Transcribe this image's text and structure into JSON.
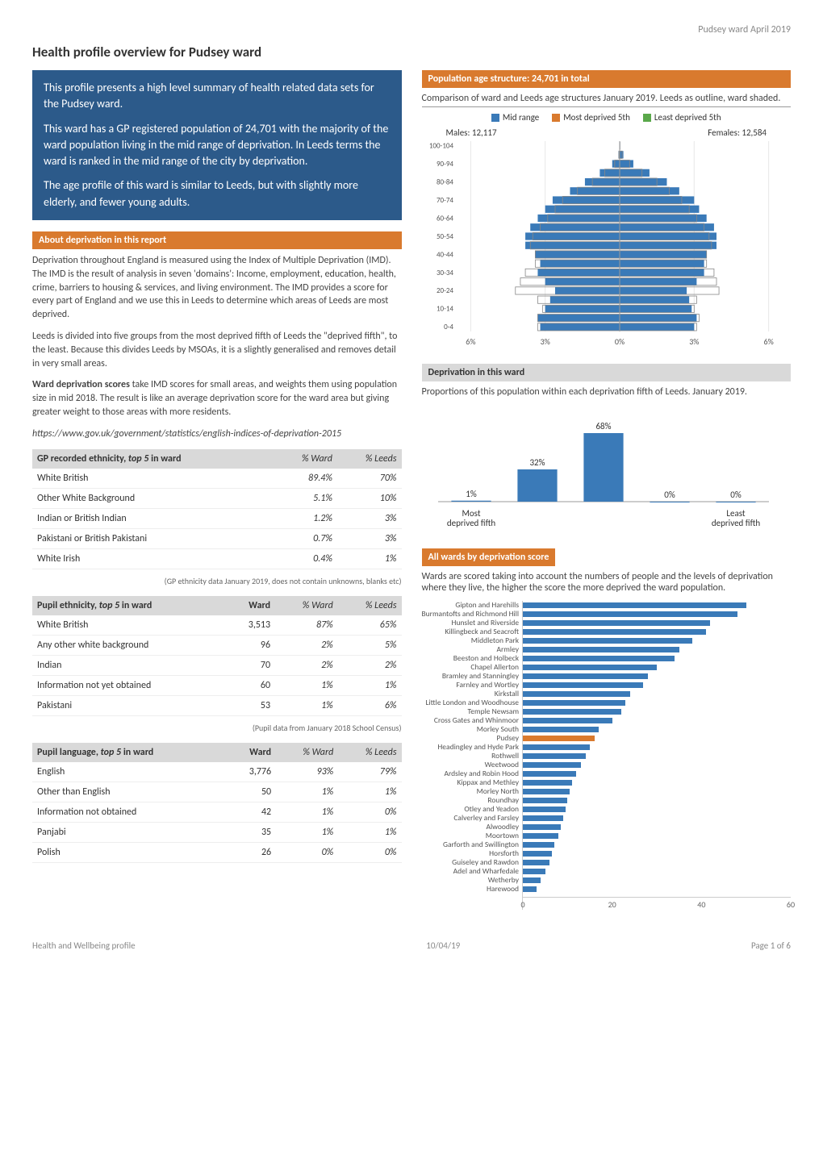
{
  "page_header_right": "Pudsey ward April 2019",
  "page_title": "Health profile overview for Pudsey ward",
  "summary": {
    "p1": "This profile presents a high level summary of health related data sets for the Pudsey ward.",
    "p2": "This ward has a GP registered population of 24,701 with the majority of the ward population living in the mid range of deprivation. In Leeds terms the ward is ranked in the mid range of the city by deprivation.",
    "p3": "The age profile of this ward is similar to Leeds, but with slightly more elderly, and fewer young adults."
  },
  "about_deprivation": {
    "header": "About deprivation in this report",
    "p1": "Deprivation throughout England is measured using the Index of Multiple Deprivation (IMD). The IMD is the result of analysis in seven 'domains': Income, employment, education, health, crime, barriers to housing & services, and living environment. The IMD provides a score for every part of England and we use this in Leeds to determine which areas of Leeds are most deprived.",
    "p2": "Leeds is divided into five groups from the most deprived fifth of Leeds the \"deprived fifth\", to the least. Because this divides Leeds by MSOAs, it is a slightly generalised and removes detail in very small areas.",
    "p3": "Ward deprivation scores take IMD scores for small areas, and weights them using population size in mid 2018. The result is like an average deprivation score for the ward area but giving greater weight to those areas with more residents.",
    "p3_bold_lead": "Ward deprivation scores",
    "link": "https://www.gov.uk/government/statistics/english-indices-of-deprivation-2015"
  },
  "ethnicity_gp": {
    "header": "GP recorded ethnicity, top 5 in ward",
    "header_italic": "top 5",
    "cols": [
      "% Ward",
      "% Leeds"
    ],
    "rows": [
      {
        "label": "White British",
        "ward": "89.4%",
        "leeds": "70%"
      },
      {
        "label": "Other White Background",
        "ward": "5.1%",
        "leeds": "10%"
      },
      {
        "label": "Indian or British Indian",
        "ward": "1.2%",
        "leeds": "3%"
      },
      {
        "label": "Pakistani or British Pakistani",
        "ward": "0.7%",
        "leeds": "3%"
      },
      {
        "label": "White Irish",
        "ward": "0.4%",
        "leeds": "1%"
      }
    ],
    "note": "(GP ethnicity data January 2019, does not contain unknowns, blanks etc)"
  },
  "ethnicity_pupil": {
    "header": "Pupil ethnicity, top 5 in ward",
    "cols": [
      "Ward",
      "% Ward",
      "% Leeds"
    ],
    "rows": [
      {
        "label": "White British",
        "n": "3,513",
        "ward": "87%",
        "leeds": "65%"
      },
      {
        "label": "Any other white background",
        "n": "96",
        "ward": "2%",
        "leeds": "5%"
      },
      {
        "label": "Indian",
        "n": "70",
        "ward": "2%",
        "leeds": "2%"
      },
      {
        "label": "Information not yet obtained",
        "n": "60",
        "ward": "1%",
        "leeds": "1%"
      },
      {
        "label": "Pakistani",
        "n": "53",
        "ward": "1%",
        "leeds": "6%"
      }
    ],
    "note": "(Pupil data from January 2018 School Census)"
  },
  "language_pupil": {
    "header": "Pupil language, top 5 in ward",
    "cols": [
      "Ward",
      "% Ward",
      "% Leeds"
    ],
    "rows": [
      {
        "label": "English",
        "n": "3,776",
        "ward": "93%",
        "leeds": "79%"
      },
      {
        "label": "Other than English",
        "n": "50",
        "ward": "1%",
        "leeds": "1%"
      },
      {
        "label": "Information not obtained",
        "n": "42",
        "ward": "1%",
        "leeds": "0%"
      },
      {
        "label": "Panjabi",
        "n": "35",
        "ward": "1%",
        "leeds": "1%"
      },
      {
        "label": "Polish",
        "n": "26",
        "ward": "0%",
        "leeds": "0%"
      }
    ]
  },
  "population_chart": {
    "header": "Population age structure: 24,701 in total",
    "subtitle": "Comparison of ward and Leeds age structures January 2019. Leeds as outline, ward shaded.",
    "legend": [
      {
        "label": "Mid range",
        "color": "#3a7ab8"
      },
      {
        "label": "Most deprived 5th",
        "color": "#d97a2e"
      },
      {
        "label": "Least deprived 5th",
        "color": "#5aa84a"
      }
    ],
    "males_label": "Males: 12,117",
    "females_label": "Females: 12,584",
    "age_bands": [
      "100-104",
      "90-94",
      "80-84",
      "70-74",
      "60-64",
      "50-54",
      "40-44",
      "30-34",
      "20-24",
      "10-14",
      "0-4"
    ],
    "age_bands_full": [
      "100-104",
      "95-99",
      "90-94",
      "85-89",
      "80-84",
      "75-79",
      "70-74",
      "65-69",
      "60-64",
      "55-59",
      "50-54",
      "45-49",
      "40-44",
      "35-39",
      "30-34",
      "25-29",
      "20-24",
      "15-19",
      "10-14",
      "5-9",
      "0-4"
    ],
    "x_ticks": [
      "6%",
      "3%",
      "0%",
      "3%",
      "6%"
    ],
    "xlim": 6.5,
    "ward_color": "#3a7ab8",
    "leeds_outline_color": "#888888",
    "background_color": "#ffffff",
    "grid_color": "#e8e8e8",
    "males_pct": [
      0.0,
      0.05,
      0.3,
      0.8,
      1.4,
      2.0,
      2.7,
      3.0,
      3.3,
      3.6,
      3.8,
      3.8,
      3.4,
      3.2,
      3.3,
      3.0,
      2.6,
      2.8,
      3.0,
      3.3,
      3.2
    ],
    "females_pct": [
      0.02,
      0.15,
      0.55,
      1.2,
      1.9,
      2.4,
      3.0,
      3.2,
      3.5,
      3.8,
      3.9,
      3.9,
      3.5,
      3.4,
      3.4,
      3.1,
      2.7,
      2.8,
      2.9,
      3.1,
      3.0
    ],
    "leeds_m": [
      0.0,
      0.03,
      0.2,
      0.6,
      1.1,
      1.7,
      2.3,
      2.6,
      2.9,
      3.2,
      3.5,
      3.6,
      3.4,
      3.4,
      3.8,
      4.0,
      4.2,
      3.3,
      3.1,
      3.3,
      3.3
    ],
    "leeds_f": [
      0.01,
      0.1,
      0.4,
      0.9,
      1.5,
      2.0,
      2.5,
      2.8,
      3.1,
      3.4,
      3.6,
      3.7,
      3.5,
      3.5,
      3.8,
      3.9,
      4.0,
      3.1,
      3.0,
      3.2,
      3.1
    ]
  },
  "deprivation_ward": {
    "header": "Deprivation in this ward",
    "subtitle": "Proportions of this population within each deprivation fifth of Leeds. January 2019.",
    "values": [
      1,
      32,
      68,
      0,
      0
    ],
    "labels": [
      "1%",
      "32%",
      "68%",
      "0%",
      "0%"
    ],
    "axis_left": "Most deprived fifth",
    "axis_right": "Least deprived fifth",
    "bar_color": "#3a7ab8",
    "ylim": 80
  },
  "all_wards": {
    "header": "All wards by deprivation score",
    "subtitle": "Wards are scored taking into account the numbers of people and the levels of deprivation where they live, the higher the score the more deprived the ward population.",
    "xlim": 60,
    "x_ticks": [
      0,
      20,
      40,
      60
    ],
    "default_color": "#3a7ab8",
    "highlight_color": "#d97a2e",
    "highlight_ward": "Pudsey",
    "wards": [
      {
        "name": "Gipton and Harehills",
        "value": 50
      },
      {
        "name": "Burmantofts and Richmond Hill",
        "value": 48
      },
      {
        "name": "Hunslet and Riverside",
        "value": 42
      },
      {
        "name": "Killingbeck and Seacroft",
        "value": 41
      },
      {
        "name": "Middleton Park",
        "value": 38
      },
      {
        "name": "Armley",
        "value": 35
      },
      {
        "name": "Beeston and Holbeck",
        "value": 34
      },
      {
        "name": "Chapel Allerton",
        "value": 30
      },
      {
        "name": "Bramley and Stanningley",
        "value": 28
      },
      {
        "name": "Farnley and Wortley",
        "value": 27
      },
      {
        "name": "Kirkstall",
        "value": 24
      },
      {
        "name": "Little London and Woodhouse",
        "value": 23
      },
      {
        "name": "Temple Newsam",
        "value": 22
      },
      {
        "name": "Cross Gates and Whinmoor",
        "value": 20
      },
      {
        "name": "Morley South",
        "value": 17
      },
      {
        "name": "Pudsey",
        "value": 16
      },
      {
        "name": "Headingley and Hyde Park",
        "value": 15
      },
      {
        "name": "Rothwell",
        "value": 14
      },
      {
        "name": "Weetwood",
        "value": 13
      },
      {
        "name": "Ardsley and Robin Hood",
        "value": 12
      },
      {
        "name": "Kippax and Methley",
        "value": 11
      },
      {
        "name": "Morley North",
        "value": 10.5
      },
      {
        "name": "Roundhay",
        "value": 10
      },
      {
        "name": "Otley and Yeadon",
        "value": 9.5
      },
      {
        "name": "Calverley and Farsley",
        "value": 9
      },
      {
        "name": "Alwoodley",
        "value": 8.5
      },
      {
        "name": "Moortown",
        "value": 8
      },
      {
        "name": "Garforth and Swillington",
        "value": 7
      },
      {
        "name": "Horsforth",
        "value": 6.5
      },
      {
        "name": "Guiseley and Rawdon",
        "value": 6
      },
      {
        "name": "Adel and Wharfedale",
        "value": 5
      },
      {
        "name": "Wetherby",
        "value": 4
      },
      {
        "name": "Harewood",
        "value": 3
      }
    ]
  },
  "footer": {
    "left": "Health and Wellbeing profile",
    "center": "10/04/19",
    "right": "Page 1 of 6"
  }
}
